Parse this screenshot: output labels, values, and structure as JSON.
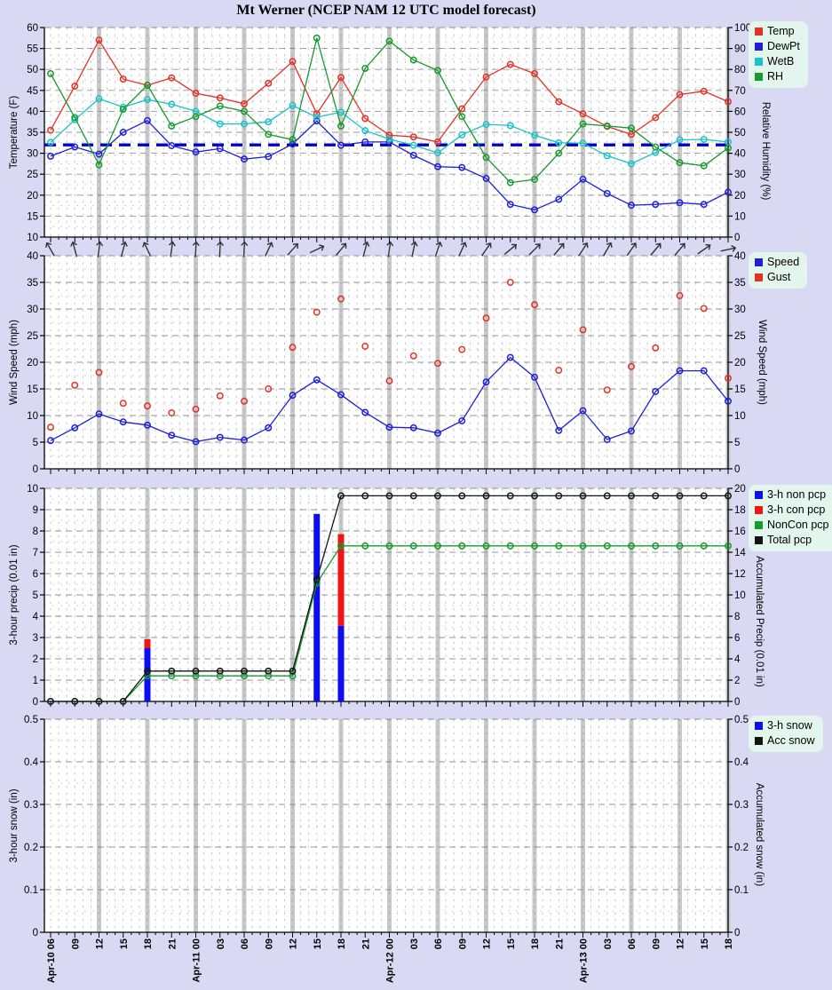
{
  "title": "Mt Werner (NCEP NAM 12 UTC model forecast)",
  "colors": {
    "background": "#d9d9f4",
    "plot_bg": "#ffffff",
    "legend_bg": "#e3f6ee",
    "grid": "#7d7d7d",
    "day_band": "#c9c9c9",
    "axis": "#000000",
    "freezing": "#0000cc",
    "temp": "#e53026",
    "dewpt": "#1f1fd6",
    "wetb": "#17c3c9",
    "rh": "#179a2e",
    "speed": "#1f1fd6",
    "gust": "#e53026",
    "non_pcp": "#0d0df0",
    "con_pcp": "#f01414",
    "noncon_line": "#179a2e",
    "total_line": "#141414",
    "snow": "#0d0df0",
    "acc_snow": "#141414",
    "arrow": "#333333"
  },
  "x_axis": {
    "labels": [
      "Apr-10 06",
      "09",
      "12",
      "15",
      "18",
      "21",
      "Apr-11 00",
      "03",
      "06",
      "09",
      "12",
      "15",
      "18",
      "21",
      "Apr-12 00",
      "03",
      "06",
      "09",
      "12",
      "15",
      "18",
      "21",
      "Apr-13 00",
      "03",
      "06",
      "09",
      "12",
      "15",
      "18"
    ],
    "hours_per_tick": 3,
    "day_band_indices": [
      2,
      4,
      6,
      8,
      10,
      12,
      14,
      16,
      18,
      20,
      22,
      24,
      26,
      28
    ]
  },
  "chart_data": [
    {
      "type": "line",
      "name": "temperature-humidity",
      "left_axis": {
        "label": "Temperature (F)",
        "min": 10,
        "max": 60,
        "step": 5
      },
      "right_axis": {
        "label": "Relative Humidity (%)",
        "min": 0,
        "max": 100,
        "step": 10
      },
      "reference_line": {
        "value": 32,
        "axis": "left",
        "color_key": "freezing"
      },
      "legend": [
        {
          "label": "Temp",
          "color_key": "temp"
        },
        {
          "label": "DewPt",
          "color_key": "dewpt"
        },
        {
          "label": "WetB",
          "color_key": "wetb"
        },
        {
          "label": "RH",
          "color_key": "rh"
        }
      ],
      "series": [
        {
          "name": "Temp",
          "axis": "left",
          "color_key": "temp",
          "values": [
            35.5,
            46,
            57,
            47.7,
            46.2,
            48,
            44.3,
            43.2,
            41.8,
            46.7,
            51.9,
            39.4,
            48.1,
            38.3,
            34.3,
            33.9,
            32.7,
            40.6,
            48.2,
            51.2,
            49,
            42.3,
            39.4,
            36.4,
            34.5,
            38.5,
            44,
            44.8,
            42.3
          ]
        },
        {
          "name": "DewPt",
          "axis": "left",
          "color_key": "dewpt",
          "values": [
            29.3,
            31.5,
            29.8,
            35,
            37.8,
            31.8,
            30.3,
            31.1,
            28.6,
            29.2,
            32.2,
            37.7,
            31.9,
            32.7,
            32.7,
            29.5,
            26.8,
            26.6,
            24,
            17.8,
            16.5,
            19,
            23.8,
            20.4,
            17.6,
            17.8,
            18.2,
            17.8,
            20.7
          ]
        },
        {
          "name": "WetB",
          "axis": "left",
          "color_key": "wetb",
          "values": [
            32.6,
            38,
            43,
            41,
            42.8,
            41.7,
            40,
            37,
            37,
            37.5,
            41.4,
            38.6,
            39.8,
            35.4,
            33.4,
            31.9,
            30.1,
            34.4,
            36.9,
            36.6,
            34.3,
            32.5,
            32.4,
            29.4,
            27.5,
            30.2,
            33.2,
            33.3,
            32.7
          ]
        },
        {
          "name": "RH",
          "axis": "right",
          "color_key": "rh",
          "values": [
            78,
            57,
            34.5,
            61,
            72.5,
            53,
            57.5,
            62.5,
            60,
            49,
            46.5,
            95,
            53,
            80.5,
            93.5,
            84.5,
            79.5,
            57.5,
            38,
            26,
            27.5,
            40,
            54,
            53,
            52,
            43,
            35.5,
            34,
            42.5
          ]
        }
      ]
    },
    {
      "type": "line",
      "name": "wind",
      "left_axis": {
        "label": "Wind Speed (mph)",
        "min": 0,
        "max": 40,
        "step": 5
      },
      "right_axis": {
        "label": "Wind Speed (mph)",
        "min": 0,
        "max": 40,
        "step": 5
      },
      "wind_arrows_deg": [
        -30,
        -15,
        8,
        15,
        -25,
        8,
        3,
        3,
        3,
        25,
        42,
        65,
        40,
        15,
        8,
        12,
        18,
        25,
        35,
        50,
        45,
        40,
        33,
        30,
        35,
        40,
        40,
        55,
        78
      ],
      "legend": [
        {
          "label": "Speed",
          "color_key": "speed"
        },
        {
          "label": "Gust",
          "color_key": "gust"
        }
      ],
      "series": [
        {
          "name": "Speed",
          "axis": "left",
          "color_key": "speed",
          "values": [
            5.3,
            7.7,
            10.3,
            8.8,
            8.2,
            6.3,
            5.1,
            5.9,
            5.4,
            7.7,
            13.8,
            16.7,
            13.9,
            10.6,
            7.8,
            7.7,
            6.7,
            9,
            16.3,
            20.9,
            17.2,
            7.2,
            10.9,
            5.5,
            7.1,
            14.5,
            18.4,
            18.4,
            12.7
          ]
        },
        {
          "name": "Gust",
          "axis": "left",
          "color_key": "gust",
          "marker_only": true,
          "values": [
            7.8,
            15.7,
            18.1,
            12.3,
            11.8,
            10.5,
            11.2,
            13.7,
            12.7,
            15,
            22.8,
            29.4,
            31.9,
            23,
            16.5,
            21.2,
            19.8,
            22.4,
            28.3,
            35,
            30.8,
            18.5,
            26.1,
            14.8,
            19.2,
            22.7,
            32.5,
            30.1,
            17
          ]
        }
      ]
    },
    {
      "type": "bar+line",
      "name": "precipitation",
      "left_axis": {
        "label": "3-hour precip (0.01 in)",
        "min": 0,
        "max": 10,
        "step": 1
      },
      "right_axis": {
        "label": "Accumulated Precip (0.01 in)",
        "min": 0,
        "max": 20,
        "step": 2
      },
      "legend": [
        {
          "label": "3-h non pcp",
          "color_key": "non_pcp"
        },
        {
          "label": "3-h con pcp",
          "color_key": "con_pcp"
        },
        {
          "label": "NonCon pcp",
          "color_key": "noncon_line"
        },
        {
          "label": "Total pcp",
          "color_key": "total_line"
        }
      ],
      "bars": [
        {
          "name": "3-h non pcp",
          "color_key": "non_pcp",
          "values": [
            0,
            0,
            0,
            0,
            2.5,
            0,
            0,
            0,
            0,
            0,
            0,
            8.8,
            3.55,
            0,
            0,
            0,
            0,
            0,
            0,
            0,
            0,
            0,
            0,
            0,
            0,
            0,
            0,
            0,
            0
          ]
        },
        {
          "name": "3-h con pcp",
          "color_key": "con_pcp",
          "stacked": true,
          "values": [
            0,
            0,
            0,
            0,
            0.42,
            0,
            0,
            0,
            0,
            0,
            0,
            0,
            4.3,
            0,
            0,
            0,
            0,
            0,
            0,
            0,
            0,
            0,
            0,
            0,
            0,
            0,
            0,
            0,
            0
          ]
        }
      ],
      "series": [
        {
          "name": "NonCon pcp",
          "axis": "right",
          "color_key": "noncon_line",
          "values": [
            0,
            0,
            0,
            0,
            2.4,
            2.4,
            2.4,
            2.4,
            2.4,
            2.4,
            2.4,
            11.1,
            14.6,
            14.6,
            14.6,
            14.6,
            14.6,
            14.6,
            14.6,
            14.6,
            14.6,
            14.6,
            14.6,
            14.6,
            14.6,
            14.6,
            14.6,
            14.6,
            14.6
          ]
        },
        {
          "name": "Total pcp",
          "axis": "right",
          "color_key": "total_line",
          "values": [
            0,
            0,
            0,
            0,
            2.85,
            2.85,
            2.85,
            2.85,
            2.85,
            2.85,
            2.85,
            11.45,
            19.3,
            19.3,
            19.3,
            19.3,
            19.3,
            19.3,
            19.3,
            19.3,
            19.3,
            19.3,
            19.3,
            19.3,
            19.3,
            19.3,
            19.3,
            19.3,
            19.3
          ]
        }
      ]
    },
    {
      "type": "bar+line",
      "name": "snow",
      "left_axis": {
        "label": "3-hour snow (in)",
        "min": 0,
        "max": 0.5,
        "step": 0.1
      },
      "right_axis": {
        "label": "Accumulated snow (in)",
        "min": 0,
        "max": 0.5,
        "step": 0.1
      },
      "legend": [
        {
          "label": "3-h snow",
          "color_key": "snow"
        },
        {
          "label": "Acc snow",
          "color_key": "acc_snow"
        }
      ],
      "bars": [],
      "series": []
    }
  ]
}
